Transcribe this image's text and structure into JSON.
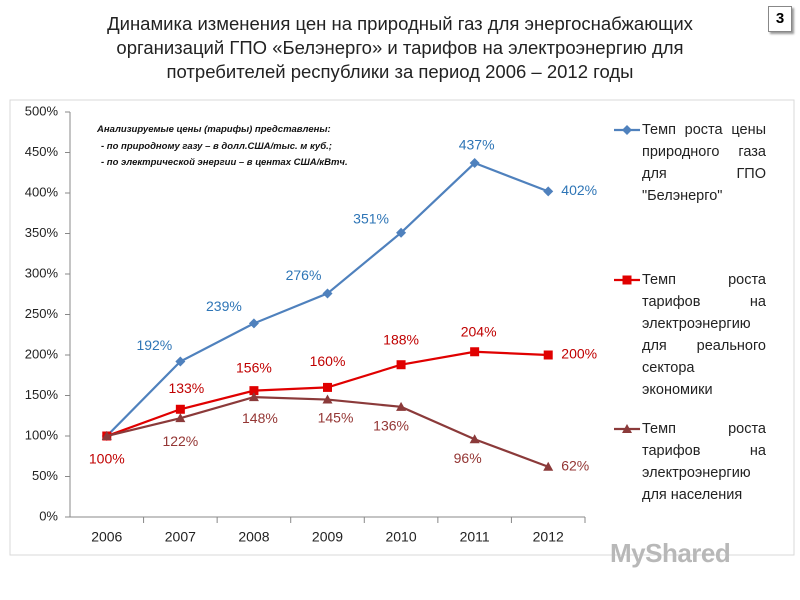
{
  "slide_number": "3",
  "watermark": "MyShared",
  "chart_data": {
    "type": "line",
    "title": "Динамика изменения цен на природный газ для энергоснабжающих организаций ГПО «Белэнерго» и тарифов на электроэнергию для потребителей республики за период 2006 – 2012 годы",
    "annotation": [
      "Анализируемые цены (тарифы) представлены:",
      "- по природному газу – в долл.США/тыс. м куб.;",
      "- по электрической энергии – в центах США/кВтч."
    ],
    "categories": [
      "2006",
      "2007",
      "2008",
      "2009",
      "2010",
      "2011",
      "2012"
    ],
    "series": [
      {
        "name": "Темп роста цены природного газа для ГПО \"Белэнерго\"",
        "color": "#4f81bd",
        "label_color": "#2e75b6",
        "marker": "diamond",
        "values": [
          100,
          192,
          239,
          276,
          351,
          437,
          402
        ],
        "value_labels": [
          null,
          "192%",
          "239%",
          "276%",
          "351%",
          "437%",
          "402%"
        ]
      },
      {
        "name": "Темп роста тарифов на электроэнергию для реального сектора экономики",
        "color": "#e00000",
        "label_color": "#c00000",
        "marker": "square",
        "values": [
          100,
          133,
          156,
          160,
          188,
          204,
          200
        ],
        "value_labels": [
          "100%",
          "133%",
          "156%",
          "160%",
          "188%",
          "204%",
          "200%"
        ]
      },
      {
        "name": "Темп роста тарифов на электроэнергию для населения",
        "color": "#8b3a3a",
        "label_color": "#943634",
        "marker": "triangle",
        "values": [
          100,
          122,
          148,
          145,
          136,
          96,
          62
        ],
        "value_labels": [
          null,
          "122%",
          "148%",
          "145%",
          "136%",
          "96%",
          "62%"
        ]
      }
    ],
    "ylim": [
      0,
      500
    ],
    "yticks": [
      {
        "value": 0,
        "label": "0%"
      },
      {
        "value": 50,
        "label": "50%"
      },
      {
        "value": 100,
        "label": "100%"
      },
      {
        "value": 150,
        "label": "150%"
      },
      {
        "value": 200,
        "label": "200%"
      },
      {
        "value": 250,
        "label": "250%"
      },
      {
        "value": 300,
        "label": "300%"
      },
      {
        "value": 350,
        "label": "350%"
      },
      {
        "value": 400,
        "label": "400%"
      },
      {
        "value": 450,
        "label": "450%"
      },
      {
        "value": 500,
        "label": "500%"
      }
    ],
    "grid": false
  }
}
